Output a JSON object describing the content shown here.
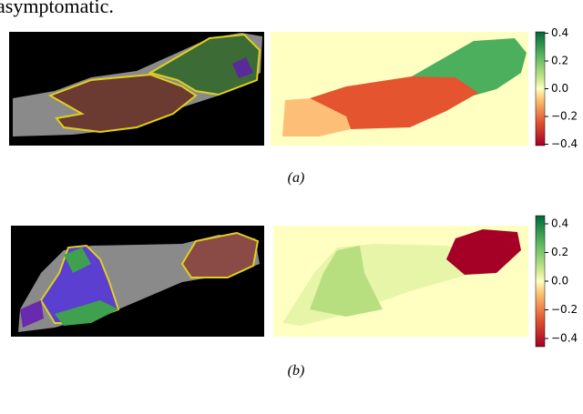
{
  "text_top": "asymptomatic.",
  "panels": [
    {
      "caption": "(a)",
      "colorbar": {
        "lim": [
          -0.41,
          0.41
        ],
        "ticks": [
          {
            "value": -0.4,
            "label": "−0.4"
          },
          {
            "value": -0.2,
            "label": "−0.2"
          },
          {
            "value": 0,
            "label": "0.0"
          },
          0.2,
          0.4
        ]
      }
    },
    {
      "caption": "(b)",
      "colorbar": {
        "lim": [
          -0.457,
          0.457
        ],
        "ticks": [
          {
            "value": -0.4,
            "label": "−0.4"
          },
          {
            "value": -0.2,
            "label": "−0.2"
          },
          {
            "value": 0,
            "label": "0.0"
          },
          0.2,
          0.4
        ]
      }
    }
  ]
}
